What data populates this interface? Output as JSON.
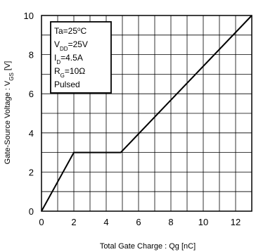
{
  "chart_data": {
    "type": "line",
    "title": "",
    "xlabel": "Total Gate Charge : Qg  [nC]",
    "ylabel_main": "Gate-Source Voltage : V",
    "ylabel_sub": "GS",
    "ylabel_unit": " [V]",
    "xlim": [
      0,
      13
    ],
    "ylim": [
      0,
      10
    ],
    "x_ticks": [
      0,
      2,
      4,
      6,
      8,
      10,
      12
    ],
    "y_ticks": [
      0,
      2,
      4,
      6,
      8,
      10
    ],
    "x_tick_labels": [
      "0",
      "2",
      "4",
      "6",
      "8",
      "10",
      "12"
    ],
    "y_tick_labels": [
      "0",
      "2",
      "4",
      "6",
      "8",
      "10"
    ],
    "grid": true,
    "grid_x_step": 1,
    "grid_y_step": 1,
    "series": [
      {
        "x": [
          0,
          2,
          4.9,
          13
        ],
        "y": [
          0,
          3,
          3,
          10
        ]
      }
    ],
    "conditions": [
      {
        "main": "Ta=25",
        "sup": "o",
        "tail": "C"
      },
      {
        "main": "V",
        "sub": "DD",
        "tail": "=25V"
      },
      {
        "main": "I",
        "sub": "D",
        "tail": "=4.5A"
      },
      {
        "main": "R",
        "sub": "G",
        "tail": "=10Ω"
      },
      {
        "main": "Pulsed"
      }
    ],
    "legend_position": "top-left",
    "colors": {
      "line": "#000000",
      "grid": "#000000",
      "background": "#ffffff"
    }
  }
}
